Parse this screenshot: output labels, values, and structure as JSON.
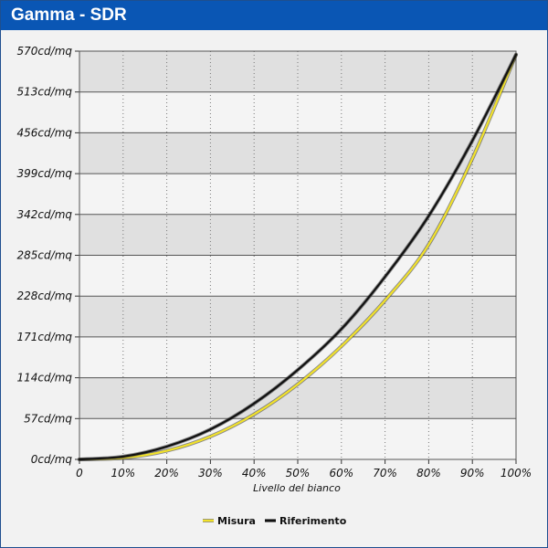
{
  "header": {
    "title": "Gamma - SDR"
  },
  "colors": {
    "header": "#0a56b4",
    "misura": "#f2e22a",
    "riferimento": "#111111",
    "band_light": "#f4f4f4",
    "band_dark": "#e0e0e0"
  },
  "chart_data": {
    "type": "line",
    "title": "Gamma - SDR",
    "xlabel": "Livello del bianco",
    "ylabel": "",
    "x_tick_labels": [
      "0",
      "10%",
      "20%",
      "30%",
      "40%",
      "50%",
      "60%",
      "70%",
      "80%",
      "90%",
      "100%"
    ],
    "y_tick_labels": [
      "0cd/mq",
      "57cd/mq",
      "114cd/mq",
      "171cd/mq",
      "228cd/mq",
      "285cd/mq",
      "342cd/mq",
      "399cd/mq",
      "456cd/mq",
      "513cd/mq",
      "570cd/mq"
    ],
    "xlim": [
      0,
      100
    ],
    "ylim": [
      0,
      570
    ],
    "grid": true,
    "legend_position": "bottom-center",
    "x": [
      0,
      10,
      20,
      30,
      40,
      50,
      60,
      70,
      80,
      90,
      100
    ],
    "series": [
      {
        "name": "Misura",
        "color": "#f2e22a",
        "values": [
          0,
          2,
          12,
          32,
          63,
          105,
          158,
          222,
          300,
          420,
          565
        ]
      },
      {
        "name": "Riferimento",
        "color": "#111111",
        "values": [
          0,
          4,
          18,
          42,
          78,
          125,
          182,
          255,
          340,
          445,
          565
        ]
      }
    ]
  }
}
